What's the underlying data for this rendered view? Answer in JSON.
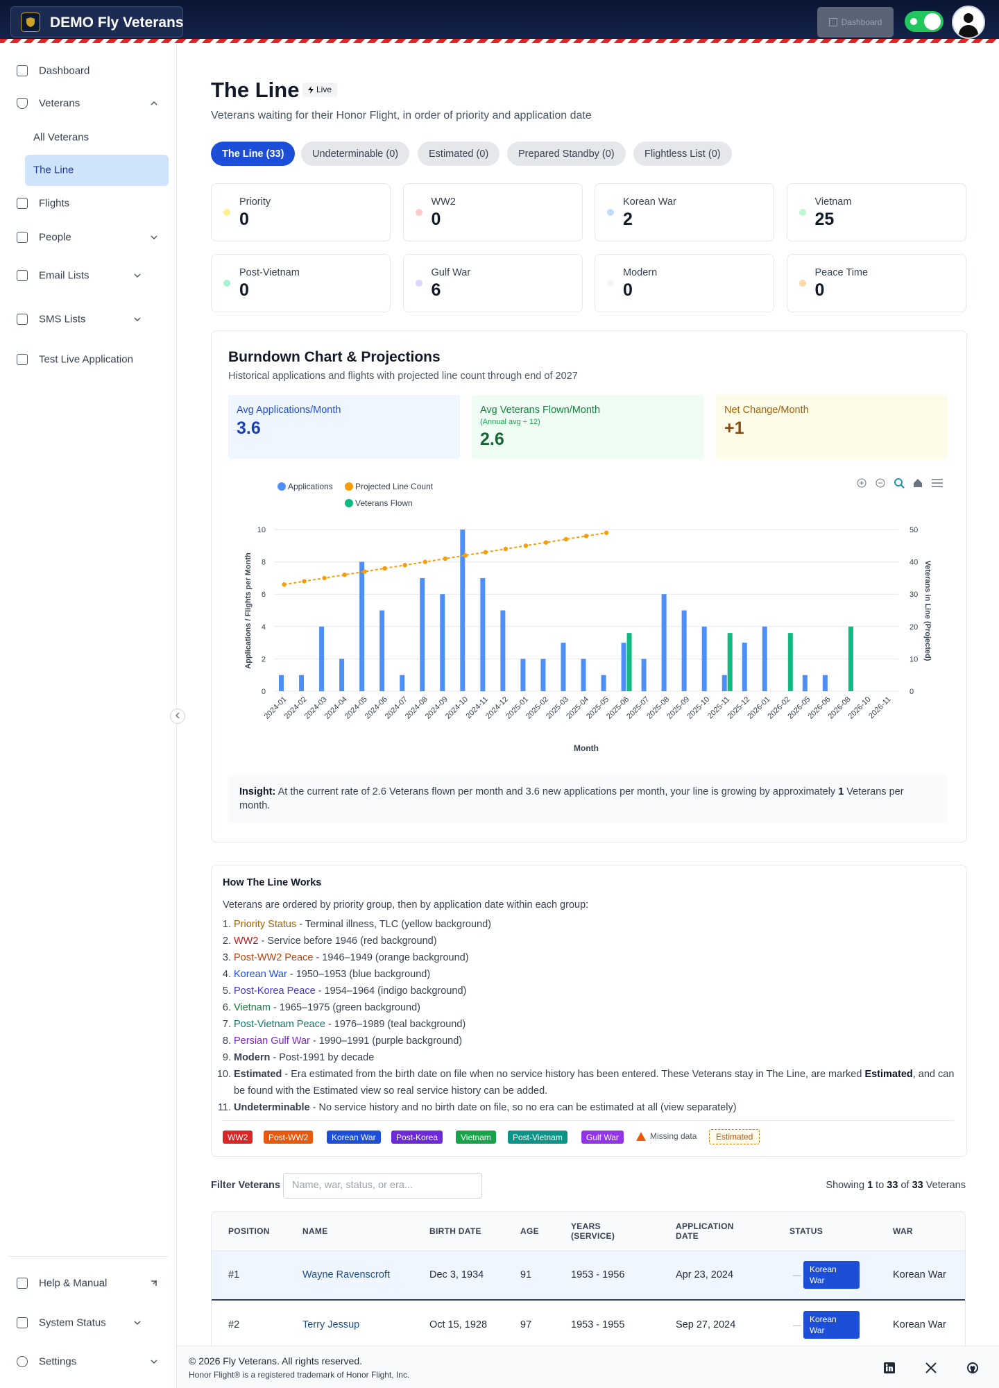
{
  "header": {
    "brand": "DEMO Fly Veterans",
    "button": "Dashboard"
  },
  "sidebar": {
    "items": [
      "Dashboard",
      "Veterans",
      "All Veterans",
      "The Line",
      "Flights",
      "People",
      "Email Lists",
      "SMS Lists",
      "Test Live Application"
    ],
    "bottom": [
      "Help & Manual",
      "System Status",
      "Settings"
    ]
  },
  "page": {
    "title": "The Line",
    "badge": "Live",
    "subtitle": "Veterans waiting for their Honor Flight, in order of priority and application date"
  },
  "tabs": [
    "The Line (33)",
    "Undeterminable (0)",
    "Estimated (0)",
    "Prepared Standby (0)",
    "Flightless List (0)"
  ],
  "stats": [
    {
      "label": "Priority",
      "value": 0
    },
    {
      "label": "WW2",
      "value": 0
    },
    {
      "label": "Korean War",
      "value": 2
    },
    {
      "label": "Vietnam",
      "value": 25
    },
    {
      "label": "Post-Vietnam",
      "value": 0
    },
    {
      "label": "Gulf War",
      "value": 6
    },
    {
      "label": "Modern",
      "value": 0
    },
    {
      "label": "Peace Time",
      "value": 0
    }
  ],
  "burndown": {
    "title": "Burndown Chart & Projections",
    "subtitle": "Historical applications and flights with projected line count through end of 2027",
    "metrics": [
      {
        "label": "Avg Applications/Month",
        "value": "3.6"
      },
      {
        "label": "Avg Veterans Flown/Month",
        "note": "(Annual avg ÷ 12)",
        "value": "2.6"
      },
      {
        "label": "Net Change/Month",
        "value": "+1"
      }
    ],
    "insight": [
      "Insight:",
      " At the current rate of 2.6 Veterans flown per month and 3.6 new applications per month, your line is growing by approximately ",
      "1",
      " Veterans per month."
    ]
  },
  "chart_data": {
    "type": "bar",
    "x_label": "Month",
    "y_label": "Applications / Flights per Month",
    "y2_label": "Veterans in Line (Projected)",
    "categories": [
      "2024-01",
      "2024-02",
      "2024-03",
      "2024-04",
      "2024-05",
      "2024-06",
      "2024-07",
      "2024-08",
      "2024-09",
      "2024-10",
      "2024-11",
      "2024-12",
      "2025-01",
      "2025-02",
      "2025-03",
      "2025-04",
      "2025-05",
      "2025-06",
      "2025-07",
      "2025-08",
      "2025-09",
      "2025-10",
      "2025-11",
      "2025-12",
      "2026-01",
      "2026-02",
      "2026-05",
      "2026-06",
      "2026-08",
      "2026-10",
      "2026-11"
    ],
    "series": [
      {
        "name": "Applications",
        "color": "#4e8ef7",
        "values": [
          1,
          1,
          4,
          2,
          8,
          5,
          1,
          7,
          6,
          10,
          7,
          5,
          2,
          2,
          3,
          2,
          1,
          3,
          2,
          6,
          5,
          4,
          1,
          3,
          4,
          0,
          1,
          1,
          0,
          0,
          0
        ]
      },
      {
        "name": "Projected Line Count",
        "type": "line",
        "axis": "y2",
        "color": "#f59e0b",
        "values": [
          33,
          34,
          35,
          36,
          37,
          38,
          39,
          40,
          41,
          42,
          43,
          44,
          45,
          46,
          47,
          48,
          49,
          null,
          null,
          null,
          null,
          null,
          null,
          null,
          null,
          null,
          null,
          null,
          null,
          null,
          null
        ]
      },
      {
        "name": "Veterans Flown",
        "axis": "y2",
        "color": "#10b981",
        "values": [
          0,
          0,
          0,
          0,
          0,
          0,
          0,
          0,
          0,
          0,
          0,
          0,
          0,
          0,
          0,
          0,
          0,
          18,
          0,
          0,
          0,
          0,
          18,
          0,
          0,
          18,
          0,
          0,
          20,
          0,
          0
        ]
      }
    ],
    "ylim": [
      0,
      10
    ],
    "yticks": [
      0,
      2,
      4,
      6,
      8,
      10
    ],
    "y2lim": [
      0,
      50
    ],
    "y2ticks": [
      0,
      10,
      20,
      30,
      40,
      50
    ],
    "grid": true
  },
  "how": {
    "title": "How The Line Works",
    "intro": "Veterans are ordered by priority group, then by application date within each group:",
    "items": [
      {
        "term": "Priority Status",
        "desc": [
          " - Terminal illness, TLC (yellow background)"
        ]
      },
      {
        "term": "WW2",
        "desc": [
          " - Service before 1946 (red background)"
        ]
      },
      {
        "term": "Post-WW2 Peace",
        "desc": [
          " - 1946–1949 (orange background)"
        ]
      },
      {
        "term": "Korean War",
        "desc": [
          " - 1950–1953 (blue background)"
        ]
      },
      {
        "term": "Post-Korea Peace",
        "desc": [
          " - 1954–1964 (indigo background)"
        ]
      },
      {
        "term": "Vietnam",
        "desc": [
          " - 1965–1975 (green background)"
        ]
      },
      {
        "term": "Post-Vietnam Peace",
        "desc": [
          " - 1976–1989 (teal background)"
        ]
      },
      {
        "term": "Persian Gulf War",
        "desc": [
          " - 1990–1991 (purple background)"
        ]
      },
      {
        "term": "Modern",
        "desc": [
          " - Post-1991 by decade"
        ]
      },
      {
        "term": "Estimated",
        "desc": [
          " - Era estimated from the birth date on file when no service history has been entered. These Veterans stay in The Line, are marked ",
          "Estimated",
          ", and can be found with the Estimated view so real service history can be added."
        ]
      },
      {
        "term": "Undeterminable",
        "desc": [
          " - No service history and no birth date on file, so no era can be estimated at all (view separately)"
        ]
      }
    ],
    "legend": [
      "WW2",
      "Post-WW2",
      "Korean War",
      "Post-Korea",
      "Vietnam",
      "Post-Vietnam",
      "Gulf War"
    ],
    "missing": "Missing data",
    "estimated": "Estimated"
  },
  "filter": {
    "label": "Filter Veterans",
    "placeholder": "Name, war, status, or era...",
    "showing": [
      "Showing ",
      "1",
      " to ",
      "33",
      " of ",
      "33",
      " Veterans"
    ]
  },
  "table": {
    "columns": [
      "POSITION",
      "NAME",
      "BIRTH DATE",
      "AGE",
      "YEARS (SERVICE)",
      "APPLICATION DATE",
      "STATUS",
      "WAR"
    ],
    "rows": [
      {
        "position": "#1",
        "name": "Wayne Ravenscroft",
        "birth": "Dec 3, 1934",
        "age": 91,
        "years": "1953 - 1956",
        "applied": "Apr 23, 2024",
        "note": "—",
        "status": "Korean War",
        "war": "Korean War"
      },
      {
        "position": "#2",
        "name": "Terry Jessup",
        "birth": "Oct 15, 1928",
        "age": 97,
        "years": "1953 - 1955",
        "applied": "Sep 27, 2024",
        "note": "—",
        "status": "Korean War",
        "war": "Korean War"
      }
    ]
  },
  "footer": {
    "copyright": "© 2026 Fly Veterans. All rights reserved.",
    "trademark": "Honor Flight® is a registered trademark of Honor Flight, Inc."
  }
}
